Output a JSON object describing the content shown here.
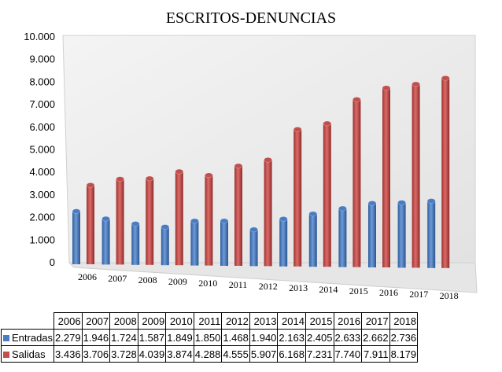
{
  "chart_data": {
    "type": "bar",
    "title": "ESCRITOS-DENUNCIAS",
    "xlabel": "",
    "ylabel": "",
    "ylim": [
      0,
      10000
    ],
    "yticks": [
      "0",
      "1.000",
      "2.000",
      "3.000",
      "4.000",
      "5.000",
      "6.000",
      "7.000",
      "8.000",
      "9.000",
      "10.000"
    ],
    "grid": false,
    "legend": "table-bottom",
    "categories": [
      "2006",
      "2007",
      "2008",
      "2009",
      "2010",
      "2011",
      "2012",
      "2013",
      "2014",
      "2015",
      "2016",
      "2017",
      "2018"
    ],
    "series": [
      {
        "name": "Entradas",
        "color": "#4a7cc4",
        "values": [
          2279,
          1946,
          1724,
          1587,
          1849,
          1850,
          1468,
          1940,
          2163,
          2405,
          2633,
          2662,
          2736
        ],
        "labels": [
          "2.279",
          "1.946",
          "1.724",
          "1.587",
          "1.849",
          "1.850",
          "1.468",
          "1.940",
          "2.163",
          "2.405",
          "2.633",
          "2.662",
          "2.736"
        ]
      },
      {
        "name": "Salidas",
        "color": "#c0504d",
        "values": [
          3436,
          3706,
          3728,
          4039,
          3874,
          4288,
          4555,
          5907,
          6168,
          7231,
          7740,
          7911,
          8179
        ],
        "labels": [
          "3.436",
          "3.706",
          "3.728",
          "4.039",
          "3.874",
          "4.288",
          "4.555",
          "5.907",
          "6.168",
          "7.231",
          "7.740",
          "7.911",
          "8.179"
        ]
      }
    ]
  }
}
